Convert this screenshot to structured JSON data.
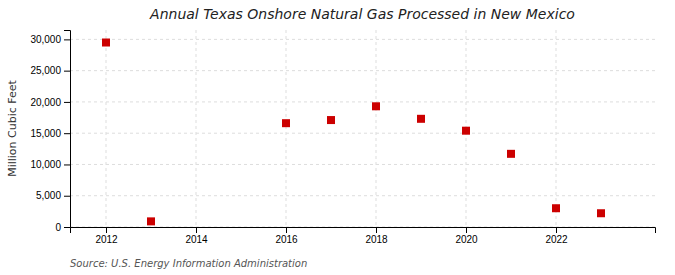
{
  "chart_data": {
    "type": "scatter",
    "title": "Annual Texas Onshore Natural Gas Processed in New Mexico",
    "ylabel": "Million Cubic Feet",
    "annotation": "Source: U.S. Energy Information Administration",
    "x": [
      2012,
      2013,
      2016,
      2017,
      2018,
      2019,
      2020,
      2021,
      2022,
      2023
    ],
    "values": [
      29500,
      900,
      16600,
      17100,
      19300,
      17300,
      15400,
      11700,
      3000,
      2200
    ],
    "color": "#cc0000",
    "marker": "square",
    "xlim": [
      2011.2,
      2024.2
    ],
    "xticks": [
      2012,
      2014,
      2016,
      2018,
      2020,
      2022
    ],
    "ylim": [
      0,
      31500
    ],
    "yticks": [
      0,
      {
        "value": 5000,
        "label": "5,000"
      },
      {
        "value": 10000,
        "label": "10,000"
      },
      {
        "value": 15000,
        "label": "15,000"
      },
      {
        "value": 20000,
        "label": "20,000"
      },
      {
        "value": 25000,
        "label": "25,000"
      },
      {
        "value": 30000,
        "label": "30,000"
      }
    ],
    "grid": true
  }
}
